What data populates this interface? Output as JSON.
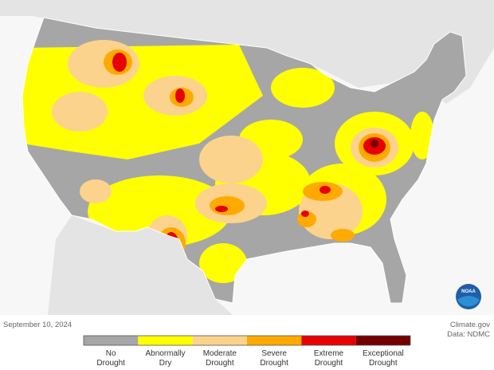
{
  "date": "September 10, 2024",
  "credits": [
    "Climate.gov",
    "Data: NDMC"
  ],
  "logo": "NOAA",
  "legend": {
    "items": [
      {
        "label": [
          "No",
          "Drought"
        ],
        "color": "#a6a6a6"
      },
      {
        "label": [
          "Abnormally",
          "Dry"
        ],
        "color": "#ffff00"
      },
      {
        "label": [
          "Moderate",
          "Drought"
        ],
        "color": "#fcd38c"
      },
      {
        "label": [
          "Severe",
          "Drought"
        ],
        "color": "#ffaa00"
      },
      {
        "label": [
          "Extreme",
          "Drought"
        ],
        "color": "#e60000"
      },
      {
        "label": [
          "Exceptional",
          "Drought"
        ],
        "color": "#730000"
      }
    ]
  }
}
